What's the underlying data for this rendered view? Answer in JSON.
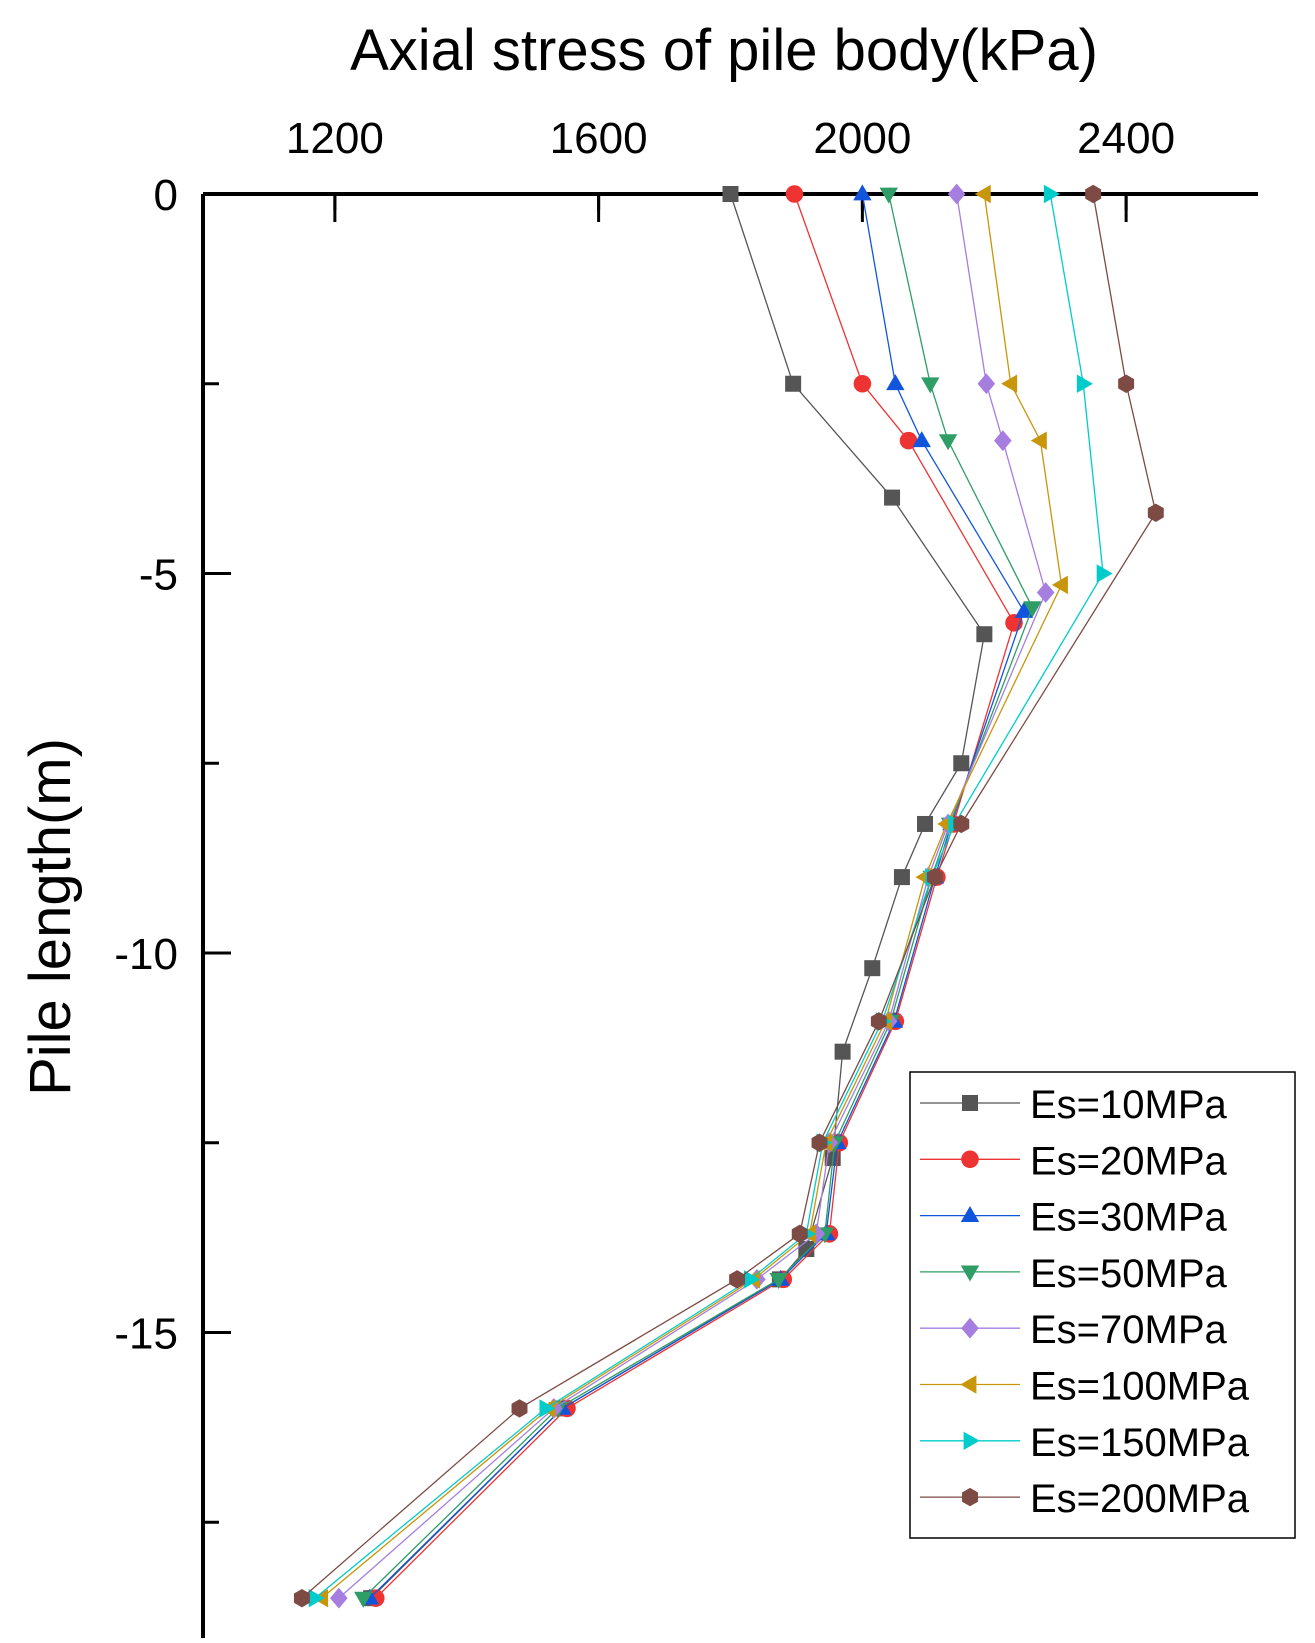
{
  "chart_data": {
    "type": "line",
    "title": "Axial stress of pile body(kPa)",
    "xlabel": "Axial stress of pile body(kPa)",
    "ylabel": "Pile length(m)",
    "xlim": [
      1000,
      2600
    ],
    "ylim": [
      -19,
      0
    ],
    "x_ticks": [
      1200,
      1600,
      2000,
      2400
    ],
    "x_tick_labels": [
      "1200",
      "1600",
      "2000",
      "2400"
    ],
    "y_ticks": [
      0,
      -5,
      -10,
      -15
    ],
    "y_tick_labels": [
      "0",
      "-5",
      "-10",
      "-15"
    ],
    "x_axis_position": "top",
    "grid": false,
    "legend_position": "bottom-right",
    "series": [
      {
        "name": "Es=10MPa",
        "label": "Es=10MPa",
        "color": "#555555",
        "marker": "square",
        "x": [
          1800,
          1895,
          2045,
          2185,
          2150,
          2095,
          2060,
          2015,
          1970,
          1955,
          1915,
          1875,
          1545,
          1255
        ],
        "y": [
          0,
          -2.5,
          -4.0,
          -5.8,
          -7.5,
          -8.3,
          -9.0,
          -10.2,
          -11.3,
          -12.7,
          -13.9,
          -14.3,
          -16.0,
          -18.5
        ]
      },
      {
        "name": "Es=20MPa",
        "label": "Es=20MPa",
        "color": "#ee3333",
        "marker": "circle",
        "x": [
          1897,
          2000,
          2070,
          2230,
          2138,
          2113,
          2050,
          1965,
          1950,
          1880,
          1552,
          1262
        ],
        "y": [
          0,
          -2.5,
          -3.25,
          -5.65,
          -8.3,
          -9.0,
          -10.9,
          -12.5,
          -13.7,
          -14.3,
          -16.0,
          -18.5
        ]
      },
      {
        "name": "Es=30MPa",
        "label": "Es=30MPa",
        "color": "#1155dd",
        "marker": "triangle-up",
        "x": [
          2000,
          2050,
          2090,
          2245,
          2135,
          2110,
          2048,
          1962,
          1945,
          1876,
          1545,
          1253
        ],
        "y": [
          0,
          -2.5,
          -3.25,
          -5.5,
          -8.3,
          -9.0,
          -10.9,
          -12.5,
          -13.7,
          -14.3,
          -16.0,
          -18.5
        ]
      },
      {
        "name": "Es=50MPa",
        "label": "Es=50MPa",
        "color": "#2e9e66",
        "marker": "triangle-down",
        "x": [
          2040,
          2103,
          2130,
          2258,
          2133,
          2105,
          2043,
          1958,
          1943,
          1873,
          1538,
          1243
        ],
        "y": [
          0,
          -2.5,
          -3.25,
          -5.45,
          -8.3,
          -9.0,
          -10.9,
          -12.5,
          -13.7,
          -14.3,
          -16.0,
          -18.5
        ]
      },
      {
        "name": "Es=70MPa",
        "label": "Es=70MPa",
        "color": "#a57ee0",
        "marker": "diamond",
        "x": [
          2143,
          2188,
          2213,
          2278,
          2130,
          2100,
          2040,
          1950,
          1930,
          1840,
          1532,
          1206
        ],
        "y": [
          0,
          -2.5,
          -3.25,
          -5.25,
          -8.3,
          -9.0,
          -10.9,
          -12.5,
          -13.7,
          -14.3,
          -16.0,
          -18.5
        ]
      },
      {
        "name": "Es=100MPa",
        "label": "Es=100MPa",
        "color": "#c8960a",
        "marker": "triangle-left",
        "x": [
          2185,
          2225,
          2270,
          2302,
          2128,
          2095,
          2035,
          1945,
          1920,
          1835,
          1525,
          1180
        ],
        "y": [
          0,
          -2.5,
          -3.25,
          -5.15,
          -8.3,
          -9.0,
          -10.9,
          -12.5,
          -13.7,
          -14.3,
          -16.0,
          -18.5
        ]
      },
      {
        "name": "Es=150MPa",
        "label": "Es=150MPa",
        "color": "#00cccc",
        "marker": "triangle-right",
        "x": [
          2285,
          2335,
          2365,
          2140,
          2105,
          2030,
          1940,
          1915,
          1830,
          1520,
          1170
        ],
        "y": [
          0,
          -2.5,
          -5.0,
          -8.3,
          -9.0,
          -10.9,
          -12.5,
          -13.7,
          -14.3,
          -16.0,
          -18.5
        ]
      },
      {
        "name": "Es=200MPa",
        "label": "Es=200MPa",
        "color": "#7d4a44",
        "marker": "hexagon",
        "x": [
          2350,
          2400,
          2445,
          2150,
          2110,
          2025,
          1935,
          1905,
          1810,
          1480,
          1150
        ],
        "y": [
          0,
          -2.5,
          -4.2,
          -8.3,
          -9.0,
          -10.9,
          -12.5,
          -13.7,
          -14.3,
          -16.0,
          -18.5
        ]
      }
    ]
  }
}
